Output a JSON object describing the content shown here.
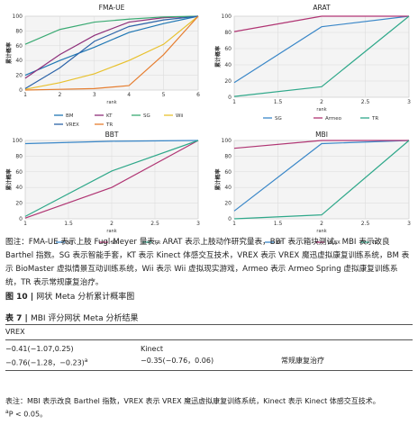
{
  "chart_data": [
    {
      "type": "line",
      "title": "FMA-UE",
      "ylabel": "累计概率",
      "xlabel": "rank",
      "x": [
        1,
        2,
        3,
        4,
        5,
        6
      ],
      "xlim": [
        1,
        6
      ],
      "ylim": [
        0,
        100
      ],
      "xticks": [
        "1",
        "2",
        "3",
        "4",
        "5",
        "6"
      ],
      "yticks": [
        "0",
        "20",
        "40",
        "60",
        "80",
        "100"
      ],
      "series": [
        {
          "name": "BM",
          "color": "#1f77b4",
          "values": [
            20,
            40,
            58,
            78,
            90,
            100
          ]
        },
        {
          "name": "KT",
          "color": "#8e2f7a",
          "values": [
            16,
            48,
            74,
            92,
            98,
            100
          ]
        },
        {
          "name": "SG",
          "color": "#3aaa73",
          "values": [
            62,
            82,
            92,
            96,
            99,
            100
          ]
        },
        {
          "name": "Wii",
          "color": "#e8c12e",
          "values": [
            1,
            10,
            22,
            40,
            62,
            100
          ]
        },
        {
          "name": "VREX",
          "color": "#2b63a8",
          "values": [
            2,
            30,
            66,
            86,
            95,
            100
          ]
        },
        {
          "name": "TR",
          "color": "#e67e30",
          "values": [
            0,
            1,
            2,
            6,
            48,
            100
          ]
        }
      ],
      "legend": [
        [
          "BM",
          "KT",
          "SG",
          "Wii"
        ],
        [
          "VREX",
          "TR"
        ]
      ],
      "grid": true
    },
    {
      "type": "line",
      "title": "ARAT",
      "ylabel": "累计概率",
      "xlabel": "rank",
      "x": [
        1,
        2,
        3
      ],
      "xlim": [
        1,
        3
      ],
      "ylim": [
        0,
        100
      ],
      "xticks": [
        "1",
        "1.5",
        "2",
        "2.5",
        "3"
      ],
      "yticks": [
        "0",
        "20",
        "40",
        "60",
        "80",
        "100"
      ],
      "series": [
        {
          "name": "SG",
          "color": "#3a87c8",
          "values": [
            18,
            87,
            100
          ]
        },
        {
          "name": "Armeo",
          "color": "#b03573",
          "values": [
            81,
            100,
            100
          ]
        },
        {
          "name": "TR",
          "color": "#2fa88a",
          "values": [
            1,
            13,
            100
          ]
        }
      ],
      "legend": [
        [
          "SG",
          "Armeo",
          "TR"
        ]
      ],
      "grid": true
    },
    {
      "type": "line",
      "title": "BBT",
      "ylabel": "累计概率",
      "xlabel": "rank",
      "x": [
        1,
        2,
        3
      ],
      "xlim": [
        1,
        3
      ],
      "ylim": [
        0,
        100
      ],
      "xticks": [
        "1",
        "1.5",
        "2",
        "2.5",
        "3"
      ],
      "yticks": [
        "0",
        "20",
        "40",
        "60",
        "80",
        "100"
      ],
      "series": [
        {
          "name": "KT",
          "color": "#3a87c8",
          "values": [
            96,
            99,
            100
          ]
        },
        {
          "name": "SG",
          "color": "#b03573",
          "values": [
            1,
            40,
            100
          ]
        },
        {
          "name": "TR",
          "color": "#2fa88a",
          "values": [
            3,
            61,
            100
          ]
        }
      ],
      "legend": [
        [
          "KT",
          "SG",
          "TR"
        ]
      ],
      "grid": true
    },
    {
      "type": "line",
      "title": "MBI",
      "ylabel": "累计概率",
      "xlabel": "rank",
      "x": [
        1,
        2,
        3
      ],
      "xlim": [
        1,
        3
      ],
      "ylim": [
        0,
        100
      ],
      "xticks": [
        "1",
        "1.5",
        "2",
        "2.5",
        "3"
      ],
      "yticks": [
        "0",
        "20",
        "40",
        "60",
        "80",
        "100"
      ],
      "series": [
        {
          "name": "KT",
          "color": "#3a87c8",
          "values": [
            10,
            96,
            100
          ]
        },
        {
          "name": "VREX",
          "color": "#b03573",
          "values": [
            90,
            100,
            100
          ]
        },
        {
          "name": "TR",
          "color": "#2fa88a",
          "values": [
            0,
            5,
            100
          ]
        }
      ],
      "legend": [
        [
          "KT",
          "VREX",
          "TR"
        ]
      ],
      "grid": true
    }
  ],
  "caption": {
    "note": "图注：FMA-UE 表示上肢 Fugl-Meyer 量表，ARAT 表示上肢动作研究量表，BBT 表示箱块测试，MBI 表示改良 Barthel 指数。SG 表示智能手套，KT 表示 Kinect 体感交互技术，VREX 表示 VREX 魔迅虚拟康复训练系统，BM 表示 BioMaster 虚拟情景互动训练系统，Wii 表示 Wii 虚拟现实游戏，Armeo 表示 Armeo Spring 虚拟康复训练系统，TR 表示常规康复治疗。",
    "fig_num": "图 10",
    "fig_title": "网状 Meta 分析累计概率图"
  },
  "table": {
    "num": "表 7",
    "title": "MBI 评分网状 Meta 分析结果",
    "header": "VREX",
    "rows": [
      {
        "c1": "−0.41(−1.07,0.25)",
        "c2": "Kinect",
        "c3": ""
      },
      {
        "c1": "−0.76(−1.28，−0.23)",
        "c1_sup": "a",
        "c2": "−0.35(−0.76，0.06)",
        "c3": "常规康复治疗"
      }
    ],
    "note": "表注：MBI 表示改良 Barthel 指数，VREX 表示 VREX 魔迅虚拟康复训练系统，Kinect 表示 Kinect 体感交互技术。",
    "note_sup": "a",
    "note_p": "P < 0.05。"
  }
}
